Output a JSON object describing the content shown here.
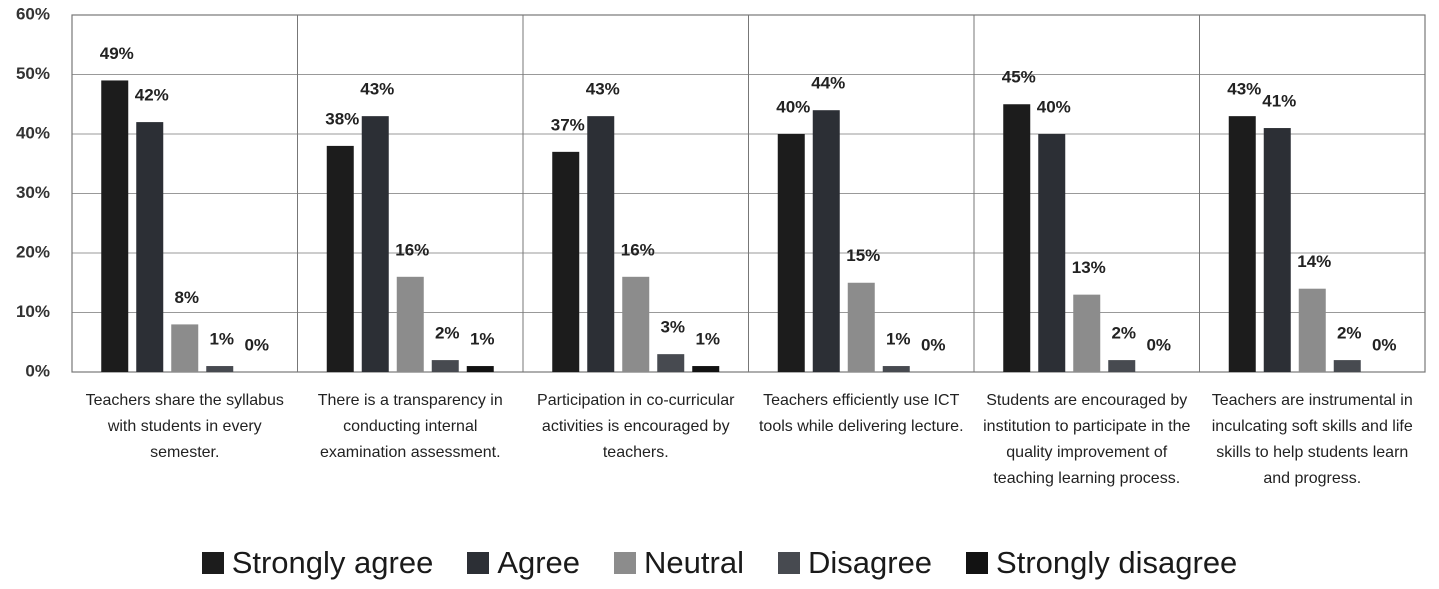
{
  "chart_data": {
    "type": "bar",
    "categories": [
      "Teachers share the syllabus with students in every semester.",
      "There is a transparency in conducting internal examination assessment.",
      "Participation in co-curricular activities is encouraged by teachers.",
      "Teachers efficiently use ICT tools while delivering lecture.",
      "Students are encouraged by institution to participate in the quality improvement of teaching learning process.",
      "Teachers are instrumental in inculcating soft skills and life skills to help students learn and progress."
    ],
    "series": [
      {
        "name": "Strongly agree",
        "color": "#1c1c1c",
        "values": [
          49,
          38,
          37,
          40,
          45,
          43
        ],
        "value_labels": [
          "49%",
          "38%",
          "37%",
          "40%",
          "45%",
          "43%"
        ]
      },
      {
        "name": "Agree",
        "color": "#2c2f35",
        "values": [
          42,
          43,
          43,
          44,
          40,
          41
        ],
        "value_labels": [
          "42%",
          "43%",
          "43%",
          "44%",
          "40%",
          "41%"
        ]
      },
      {
        "name": "Neutral",
        "color": "#8c8c8c",
        "values": [
          8,
          16,
          16,
          15,
          13,
          14
        ],
        "value_labels": [
          "8%",
          "16%",
          "16%",
          "15%",
          "13%",
          "14%"
        ]
      },
      {
        "name": "Disagree",
        "color": "#474a50",
        "values": [
          1,
          2,
          3,
          1,
          2,
          2
        ],
        "value_labels": [
          "1%",
          "2%",
          "3%",
          "1%",
          "2%",
          "2%"
        ]
      },
      {
        "name": "Strongly disagree",
        "color": "#121212",
        "values": [
          0,
          1,
          1,
          0,
          0,
          0
        ],
        "value_labels": [
          "0%",
          "1%",
          "1%",
          "0%",
          "0%",
          "0%"
        ]
      }
    ],
    "ylim": [
      0,
      60
    ],
    "yticks": [
      {
        "value": 0,
        "label": "0%"
      },
      {
        "value": 10,
        "label": "10%"
      },
      {
        "value": 20,
        "label": "20%"
      },
      {
        "value": 30,
        "label": "30%"
      },
      {
        "value": 40,
        "label": "40%"
      },
      {
        "value": 50,
        "label": "50%"
      },
      {
        "value": 60,
        "label": "60%"
      }
    ],
    "grid": true,
    "legend": "bottom"
  }
}
